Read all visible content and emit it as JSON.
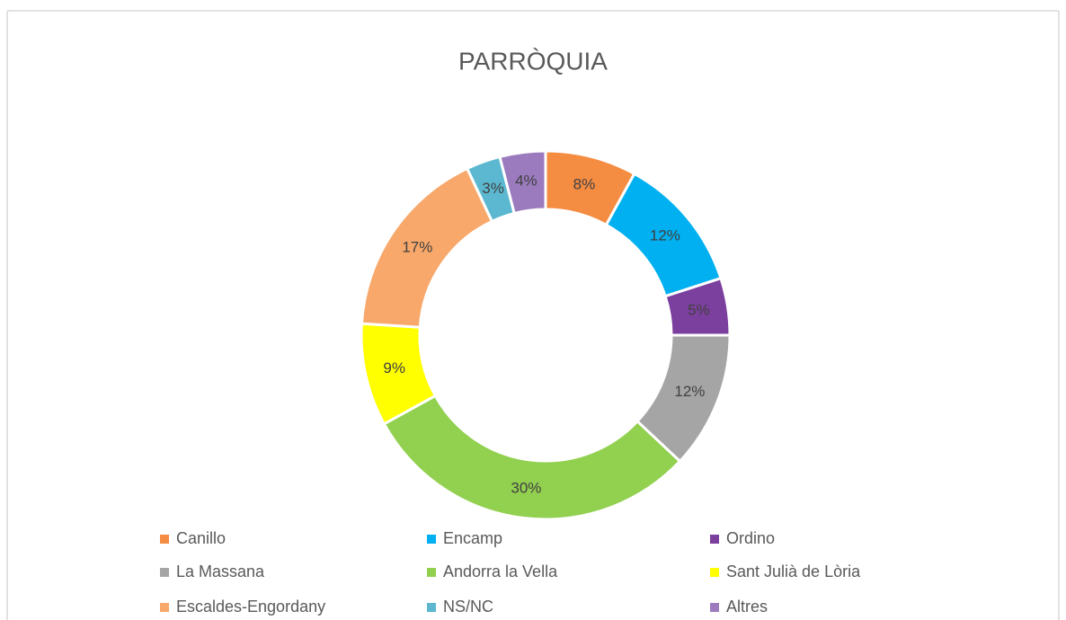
{
  "chart_data": {
    "type": "donut",
    "title": "PARRÒQUIA",
    "categories": [
      "Canillo",
      "Encamp",
      "Ordino",
      "La Massana",
      "Andorra la Vella",
      "Sant Julià de Lòria",
      "Escaldes-Engordany",
      "NS/NC",
      "Altres"
    ],
    "values": [
      8,
      12,
      5,
      12,
      30,
      9,
      17,
      3,
      4
    ],
    "value_labels": [
      "8%",
      "12%",
      "5%",
      "12%",
      "30%",
      "9%",
      "17%",
      "3%",
      "4%"
    ],
    "colors": [
      "#F48C42",
      "#00B0F0",
      "#7B3F9E",
      "#A5A5A5",
      "#92D050",
      "#FFFF00",
      "#F7A86A",
      "#5BB8D0",
      "#9B7BBE"
    ],
    "legend": "bottom"
  }
}
